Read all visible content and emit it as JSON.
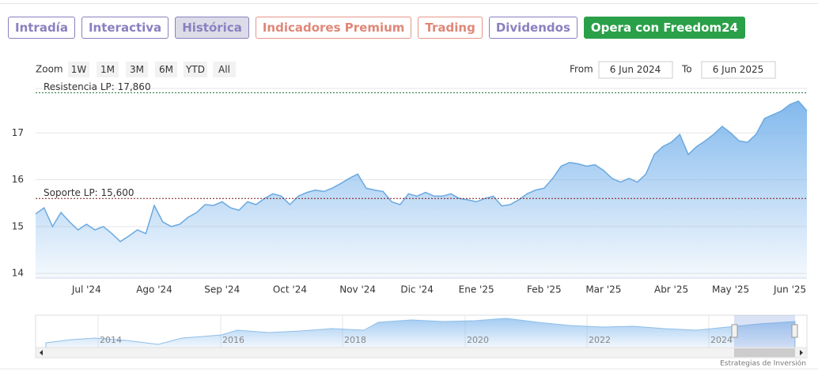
{
  "tabs": [
    "Intradía",
    "Interactiva",
    "Histórica",
    "Indicadores Premium",
    "Trading",
    "Dividendos",
    "Opera con Freedom24"
  ],
  "chart_data": {
    "type": "area",
    "zoom_label": "Zoom",
    "zoom_buttons": [
      "1W",
      "1M",
      "3M",
      "6M",
      "YTD",
      "All"
    ],
    "from_label": "From",
    "from_value": "6 Jun 2024",
    "to_label": "To",
    "to_value": "6 Jun 2025",
    "categories": [
      null,
      null,
      null,
      null,
      null,
      null,
      "Jul '24",
      null,
      null,
      null,
      null,
      null,
      null,
      null,
      "Ago '24",
      null,
      null,
      null,
      null,
      null,
      null,
      null,
      "Sep '24",
      null,
      null,
      null,
      null,
      null,
      null,
      null,
      "Oct '24",
      null,
      null,
      null,
      null,
      null,
      null,
      null,
      "Nov '24",
      null,
      null,
      null,
      null,
      null,
      null,
      "Dic '24",
      null,
      null,
      null,
      null,
      null,
      null,
      "Ene '25",
      null,
      null,
      null,
      null,
      null,
      null,
      null,
      "Feb '25",
      null,
      null,
      null,
      null,
      null,
      null,
      "Mar '25",
      null,
      null,
      null,
      null,
      null,
      null,
      null,
      "Abr '25",
      null,
      null,
      null,
      null,
      null,
      null,
      "May '25",
      null,
      null,
      null,
      null,
      null,
      null,
      "Jun '25",
      null,
      null
    ],
    "values": [
      15.27,
      15.4,
      15.0,
      15.3,
      15.1,
      14.93,
      15.05,
      14.93,
      15.0,
      14.85,
      14.68,
      14.8,
      14.93,
      14.85,
      15.45,
      15.1,
      15.0,
      15.05,
      15.2,
      15.3,
      15.47,
      15.45,
      15.53,
      15.4,
      15.35,
      15.53,
      15.47,
      15.6,
      15.7,
      15.65,
      15.47,
      15.65,
      15.73,
      15.78,
      15.75,
      15.82,
      15.92,
      16.03,
      16.12,
      15.82,
      15.78,
      15.75,
      15.53,
      15.47,
      15.7,
      15.65,
      15.73,
      15.65,
      15.65,
      15.7,
      15.6,
      15.57,
      15.53,
      15.6,
      15.65,
      15.44,
      15.47,
      15.57,
      15.7,
      15.78,
      15.82,
      16.03,
      16.29,
      16.37,
      16.34,
      16.29,
      16.32,
      16.2,
      16.03,
      15.95,
      16.03,
      15.95,
      16.12,
      16.54,
      16.71,
      16.8,
      16.97,
      16.54,
      16.71,
      16.83,
      16.97,
      17.14,
      17.0,
      16.83,
      16.8,
      16.97,
      17.31,
      17.39,
      17.47,
      17.61,
      17.68,
      17.47
    ],
    "color": "#6aa9e0",
    "ylim": [
      13.9,
      17.95
    ],
    "yticks": [
      14,
      15,
      16,
      17
    ],
    "grid": true,
    "annotations": [
      {
        "label": "Resistencia LP: 17,860",
        "value": 17.86,
        "color": "#1e6b2a"
      },
      {
        "label": "Soporte LP: 15,600",
        "value": 15.6,
        "color": "#7a1414"
      }
    ],
    "navigator_labels": [
      "2014",
      "2016",
      "2018",
      "2020",
      "2022",
      "2024"
    ]
  },
  "footer": "Estrategias de Inversión"
}
